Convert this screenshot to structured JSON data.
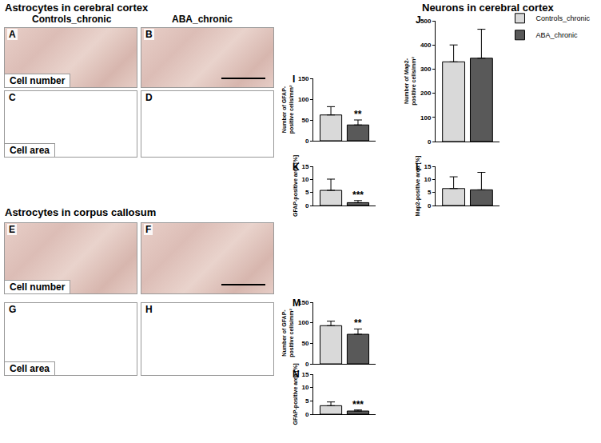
{
  "panels": {
    "headers": {
      "cortex": "Astrocytes in cerebral cortex",
      "callosum": "Astrocytes in corpus callosum",
      "neurons": "Neurons in cerebral cortex"
    },
    "columns": [
      "Controls_chronic",
      "ABA_chronic"
    ],
    "images": [
      {
        "letter": "A",
        "label": "Cell number"
      },
      {
        "letter": "B"
      },
      {
        "letter": "C",
        "label": "Cell area"
      },
      {
        "letter": "D"
      },
      {
        "letter": "E",
        "label": "Cell number"
      },
      {
        "letter": "F"
      },
      {
        "letter": "G",
        "label": "Cell area"
      },
      {
        "letter": "H"
      }
    ]
  },
  "chart_data": [
    {
      "type": "bar",
      "panel": "I",
      "y_label": [
        "Number of GFAP-",
        "positive cells/mm²"
      ],
      "ylim": [
        0,
        150
      ],
      "yticks": [
        0,
        50,
        100,
        150
      ],
      "tick_labels": "y",
      "series": [
        {
          "name": "Controls_chronic",
          "color": "#d9d9d9",
          "values": [
            62
          ],
          "errors": [
            20
          ]
        },
        {
          "name": "ABA_chronic",
          "color": "#595959",
          "values": [
            38
          ],
          "errors": [
            12
          ],
          "significance": "**"
        }
      ]
    },
    {
      "type": "bar",
      "panel": "J",
      "y_label": [
        "Number of Map2-",
        "positive cells/mm²"
      ],
      "ylim": [
        0,
        500
      ],
      "yticks": [
        0,
        100,
        200,
        300,
        400,
        500
      ],
      "tick_labels": "y",
      "legend": "top right",
      "series": [
        {
          "name": "Controls_chronic",
          "color": "#d9d9d9",
          "values": [
            330
          ],
          "errors": [
            70
          ]
        },
        {
          "name": "ABA_chronic",
          "color": "#595959",
          "values": [
            345
          ],
          "errors": [
            120
          ]
        }
      ]
    },
    {
      "type": "bar",
      "panel": "K",
      "y_label": [
        "GFAP-positive area [%]"
      ],
      "ylim": [
        0,
        15
      ],
      "yticks": [
        0,
        5,
        10,
        15
      ],
      "tick_labels": "y",
      "series": [
        {
          "name": "Controls_chronic",
          "color": "#d9d9d9",
          "values": [
            5.8
          ],
          "errors": [
            4.3
          ]
        },
        {
          "name": "ABA_chronic",
          "color": "#595959",
          "values": [
            1.1
          ],
          "errors": [
            0.8
          ],
          "significance": "***"
        }
      ]
    },
    {
      "type": "bar",
      "panel": "L",
      "y_label": [
        "Map2-positive area [%]"
      ],
      "ylim": [
        0,
        15
      ],
      "yticks": [
        0,
        5,
        10,
        15
      ],
      "tick_labels": "y",
      "series": [
        {
          "name": "Controls_chronic",
          "color": "#d9d9d9",
          "values": [
            6.5
          ],
          "errors": [
            4.5
          ]
        },
        {
          "name": "ABA_chronic",
          "color": "#595959",
          "values": [
            6.0
          ],
          "errors": [
            6.7
          ]
        }
      ]
    },
    {
      "type": "bar",
      "panel": "M",
      "y_label": [
        "Number of GFAP-",
        "positive cells/mm²"
      ],
      "ylim": [
        0,
        150
      ],
      "yticks": [
        0,
        50,
        100,
        150
      ],
      "tick_labels": "y",
      "series": [
        {
          "name": "Controls_chronic",
          "color": "#d9d9d9",
          "values": [
            93
          ],
          "errors": [
            11
          ]
        },
        {
          "name": "ABA_chronic",
          "color": "#595959",
          "values": [
            72
          ],
          "errors": [
            13
          ],
          "significance": "**"
        }
      ]
    },
    {
      "type": "bar",
      "panel": "N",
      "y_label": [
        "GFAP-positive area [%]"
      ],
      "ylim": [
        0,
        15
      ],
      "yticks": [
        0,
        5,
        10,
        15
      ],
      "tick_labels": "y",
      "series": [
        {
          "name": "Controls_chronic",
          "color": "#d9d9d9",
          "values": [
            3.2
          ],
          "errors": [
            1.4
          ]
        },
        {
          "name": "ABA_chronic",
          "color": "#595959",
          "values": [
            1.2
          ],
          "errors": [
            0.4
          ],
          "significance": "***"
        }
      ]
    }
  ]
}
